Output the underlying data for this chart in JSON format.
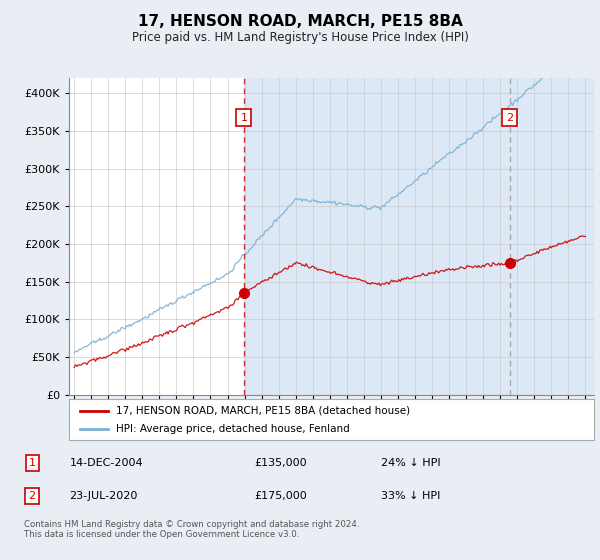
{
  "title": "17, HENSON ROAD, MARCH, PE15 8BA",
  "subtitle": "Price paid vs. HM Land Registry's House Price Index (HPI)",
  "legend_line1": "17, HENSON ROAD, MARCH, PE15 8BA (detached house)",
  "legend_line2": "HPI: Average price, detached house, Fenland",
  "transaction1_date": "14-DEC-2004",
  "transaction1_price": "£135,000",
  "transaction1_hpi": "24% ↓ HPI",
  "transaction2_date": "23-JUL-2020",
  "transaction2_price": "£175,000",
  "transaction2_hpi": "33% ↓ HPI",
  "footer": "Contains HM Land Registry data © Crown copyright and database right 2024.\nThis data is licensed under the Open Government Licence v3.0.",
  "hpi_color": "#7bafd4",
  "price_color": "#cc0000",
  "vline1_color": "#cc0000",
  "vline2_color": "#999999",
  "background_color": "#e8eef4",
  "plot_bg_color": "#ffffff",
  "shade_color": "#dce8f5",
  "grid_color": "#cccccc",
  "ylim": [
    0,
    420000
  ],
  "yticks": [
    0,
    50000,
    100000,
    150000,
    200000,
    250000,
    300000,
    350000,
    400000
  ],
  "transaction1_x": 2004.96,
  "transaction2_x": 2020.55,
  "transaction1_y": 135000,
  "transaction2_y": 175000,
  "xmin": 1994.7,
  "xmax": 2025.5
}
